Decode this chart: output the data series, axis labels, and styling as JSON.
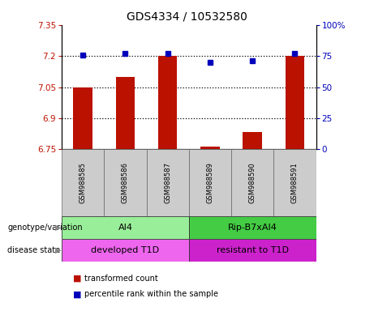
{
  "title": "GDS4334 / 10532580",
  "samples": [
    "GSM988585",
    "GSM988586",
    "GSM988587",
    "GSM988589",
    "GSM988590",
    "GSM988591"
  ],
  "bar_values": [
    7.05,
    7.1,
    7.2,
    6.762,
    6.835,
    7.2
  ],
  "dot_values": [
    76,
    77,
    77,
    70,
    71,
    77
  ],
  "ylim_left": [
    6.75,
    7.35
  ],
  "ylim_right": [
    0,
    100
  ],
  "yticks_left": [
    6.75,
    6.9,
    7.05,
    7.2,
    7.35
  ],
  "yticks_right": [
    0,
    25,
    50,
    75,
    100
  ],
  "ytick_labels_left": [
    "6.75",
    "6.9",
    "7.05",
    "7.2",
    "7.35"
  ],
  "ytick_labels_right": [
    "0",
    "25",
    "50",
    "75",
    "100%"
  ],
  "dotted_lines": [
    7.2,
    7.05,
    6.9
  ],
  "bar_color": "#bb1100",
  "dot_color": "#0000bb",
  "bar_width": 0.45,
  "group1_label": "AI4",
  "group2_label": "Rip-B7xAI4",
  "group1_disease": "developed T1D",
  "group2_disease": "resistant to T1D",
  "group1_geno_color": "#99ee99",
  "group2_geno_color": "#44cc44",
  "disease1_color": "#ee66ee",
  "disease2_color": "#cc22cc",
  "genotype_label": "genotype/variation",
  "disease_label": "disease state",
  "legend_bar_label": "transformed count",
  "legend_dot_label": "percentile rank within the sample",
  "sample_bg_color": "#cccccc",
  "title_fontsize": 10,
  "tick_fontsize": 7.5,
  "label_fontsize": 7.5
}
